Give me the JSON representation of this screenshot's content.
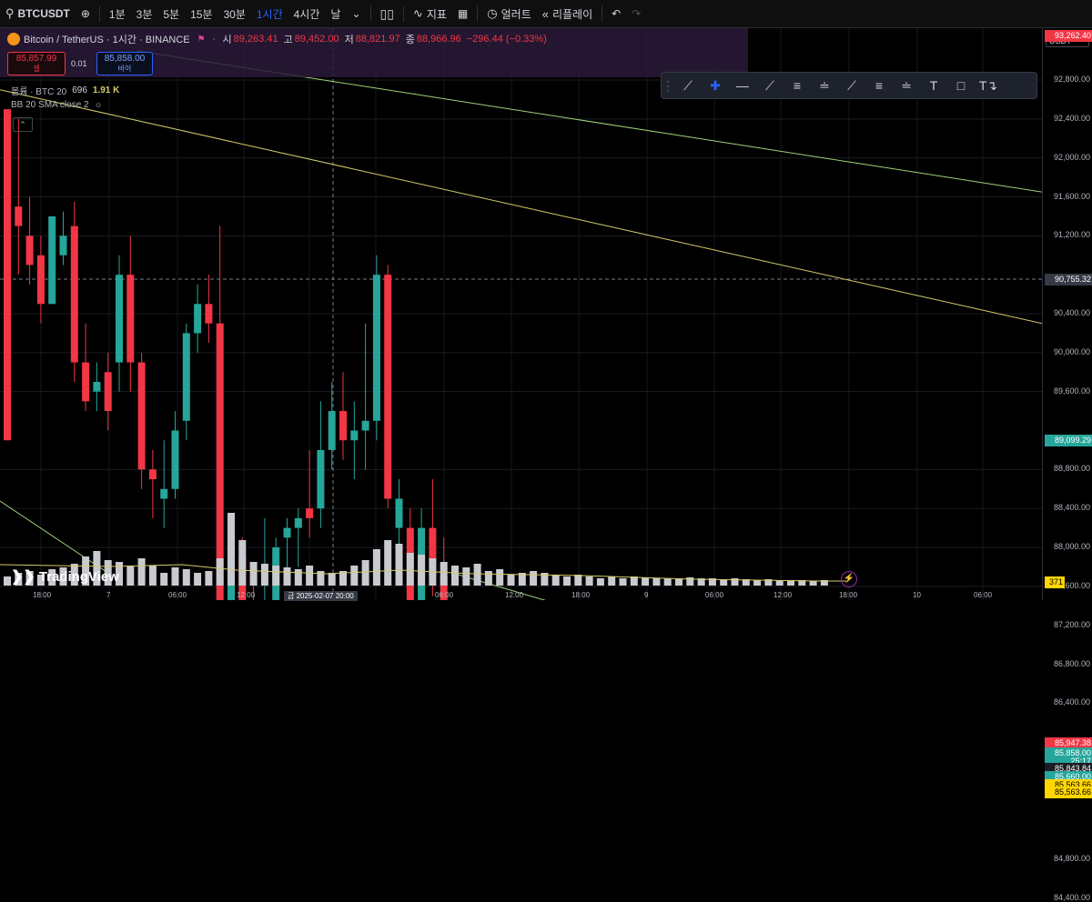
{
  "toolbar": {
    "symbol": "BTCUSDT",
    "intervals": [
      "1분",
      "3분",
      "5분",
      "15분",
      "30분",
      "1시간",
      "4시간",
      "날"
    ],
    "active_interval": "1시간",
    "indicators_label": "지표",
    "alert_label": "얼러트",
    "replay_label": "리플레이"
  },
  "legend": {
    "title": "Bitcoin / TetherUS · 1시간 · BINANCE",
    "open_label": "시",
    "open": "89,263.41",
    "high_label": "고",
    "high": "89,452.00",
    "low_label": "저",
    "low": "88,821.97",
    "close_label": "종",
    "close": "88,966.96",
    "change": "−296.44 (−0.33%)"
  },
  "order": {
    "sell_price": "85,857.99",
    "sell_label": "셀",
    "spread": "0.01",
    "buy_price": "85,858.00",
    "buy_label": "바이"
  },
  "volume_legend": {
    "label": "볼륨 · BTC 20",
    "value1": "696",
    "value2": "1.91 K"
  },
  "bb_legend": {
    "label": "BB 20 SMA close 2"
  },
  "price_axis": {
    "currency": "USDT",
    "ticks": [
      "92,800.00",
      "92,400.00",
      "92,000.00",
      "91,600.00",
      "91,200.00",
      "90,400.00",
      "90,000.00",
      "89,600.00",
      "88,800.00",
      "88,400.00",
      "88,000.00",
      "87,600.00",
      "87,200.00",
      "86,800.00",
      "86,400.00",
      "84,800.00",
      "84,400.00"
    ],
    "tags": {
      "top": "93,262.40",
      "crosshair": "90,755.32",
      "green_line": "89,099.29",
      "last1": "85,947.38",
      "last_price": "85,858.00",
      "countdown": "25:17",
      "level1": "85,843.84",
      "level2": "85,660.00",
      "level3": "85,563.66",
      "level4": "85,563.66",
      "volume": "371"
    }
  },
  "time_axis": {
    "labels": [
      "18:00",
      "7",
      "06:00",
      "12:00",
      "18:00",
      "06:00",
      "12:00",
      "18:00",
      "9",
      "06:00",
      "12:00",
      "18:00",
      "10",
      "06:00"
    ],
    "crosshair_label": "금 2025-02-07   20:00"
  },
  "branding": {
    "logo_text": "TradingView"
  },
  "colors": {
    "up": "#26a69a",
    "down": "#f23645",
    "accent": "#2962ff",
    "trend_yellow": "#d4cc6a",
    "trend_green": "#9ed27b"
  }
}
